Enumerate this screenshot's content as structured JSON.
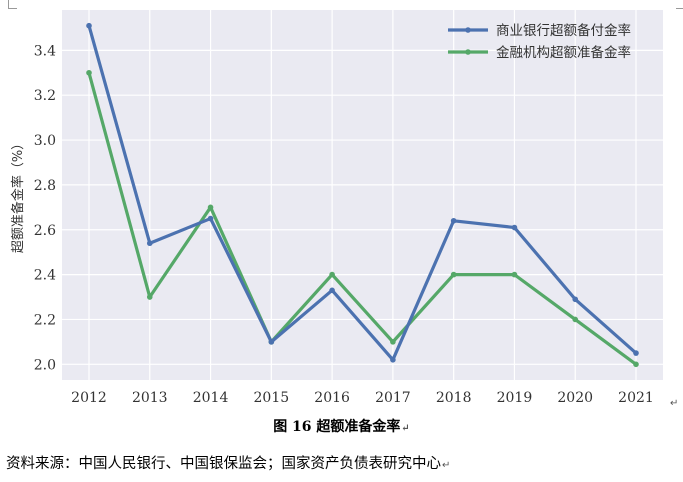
{
  "chart_data": {
    "type": "line",
    "ylabel": "超额准备金率（%）",
    "xlabel": "",
    "categories": [
      "2012",
      "2013",
      "2014",
      "2015",
      "2016",
      "2017",
      "2018",
      "2019",
      "2020",
      "2021"
    ],
    "ylim": [
      1.93,
      3.58
    ],
    "yticks": [
      2.0,
      2.2,
      2.4,
      2.6,
      2.8,
      3.0,
      3.2,
      3.4
    ],
    "ytick_labels": [
      "2.0",
      "2.2",
      "2.4",
      "2.6",
      "2.8",
      "3.0",
      "3.2",
      "3.4"
    ],
    "grid": true,
    "legend_position": "top-right",
    "series": [
      {
        "name": "商业银行超额备付金率",
        "color": "#4c72b0",
        "values": [
          3.51,
          2.54,
          2.65,
          2.1,
          2.33,
          2.02,
          2.64,
          2.61,
          2.29,
          2.05
        ]
      },
      {
        "name": "金融机构超额准备金率",
        "color": "#55a868",
        "values": [
          3.3,
          2.3,
          2.7,
          2.1,
          2.4,
          2.1,
          2.4,
          2.4,
          2.2,
          2.0
        ]
      }
    ]
  },
  "caption": {
    "label": "图 16  超额准备金率"
  },
  "source": {
    "text": "资料来源：中国人民银行、中国银保监会；国家资产负债表研究中心"
  },
  "paragraph_mark": "↵"
}
